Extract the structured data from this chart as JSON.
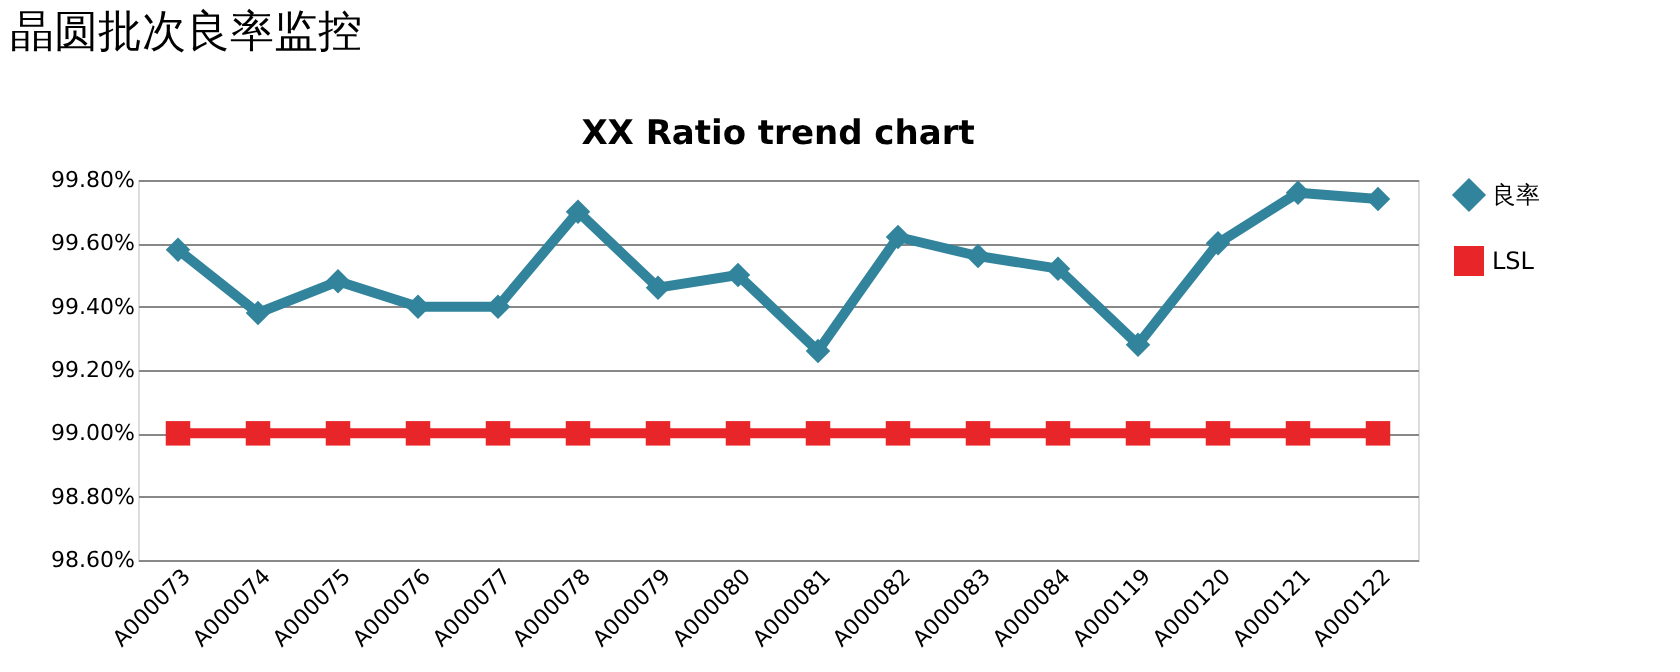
{
  "chart_data": {
    "type": "line",
    "title": "晶圆批次良率监控",
    "subtitle": "XX Ratio trend chart",
    "categories": [
      "A000073",
      "A000074",
      "A000075",
      "A000076",
      "A000077",
      "A000078",
      "A000079",
      "A000080",
      "A000081",
      "A000082",
      "A000083",
      "A000084",
      "A000119",
      "A000120",
      "A000121",
      "A000122"
    ],
    "series": [
      {
        "name": "良率",
        "color": "#31849b",
        "marker": "diamond",
        "values": [
          99.58,
          99.38,
          99.48,
          99.4,
          99.4,
          99.7,
          99.46,
          99.5,
          99.26,
          99.62,
          99.56,
          99.52,
          99.28,
          99.6,
          99.76,
          99.74
        ]
      },
      {
        "name": "LSL",
        "color": "#e8262a",
        "marker": "square",
        "values": [
          99.0,
          99.0,
          99.0,
          99.0,
          99.0,
          99.0,
          99.0,
          99.0,
          99.0,
          99.0,
          99.0,
          99.0,
          99.0,
          99.0,
          99.0,
          99.0
        ]
      }
    ],
    "ylim": [
      98.6,
      99.8
    ],
    "yticks": [
      {
        "value": 98.6,
        "label": "98.60%"
      },
      {
        "value": 98.8,
        "label": "98.80%"
      },
      {
        "value": 99.0,
        "label": "99.00%"
      },
      {
        "value": 99.2,
        "label": "99.20%"
      },
      {
        "value": 99.4,
        "label": "99.40%"
      },
      {
        "value": 99.6,
        "label": "99.60%"
      },
      {
        "value": 99.8,
        "label": "99.80%"
      }
    ],
    "grid": "y",
    "legend": "right",
    "line_style": "solid"
  }
}
